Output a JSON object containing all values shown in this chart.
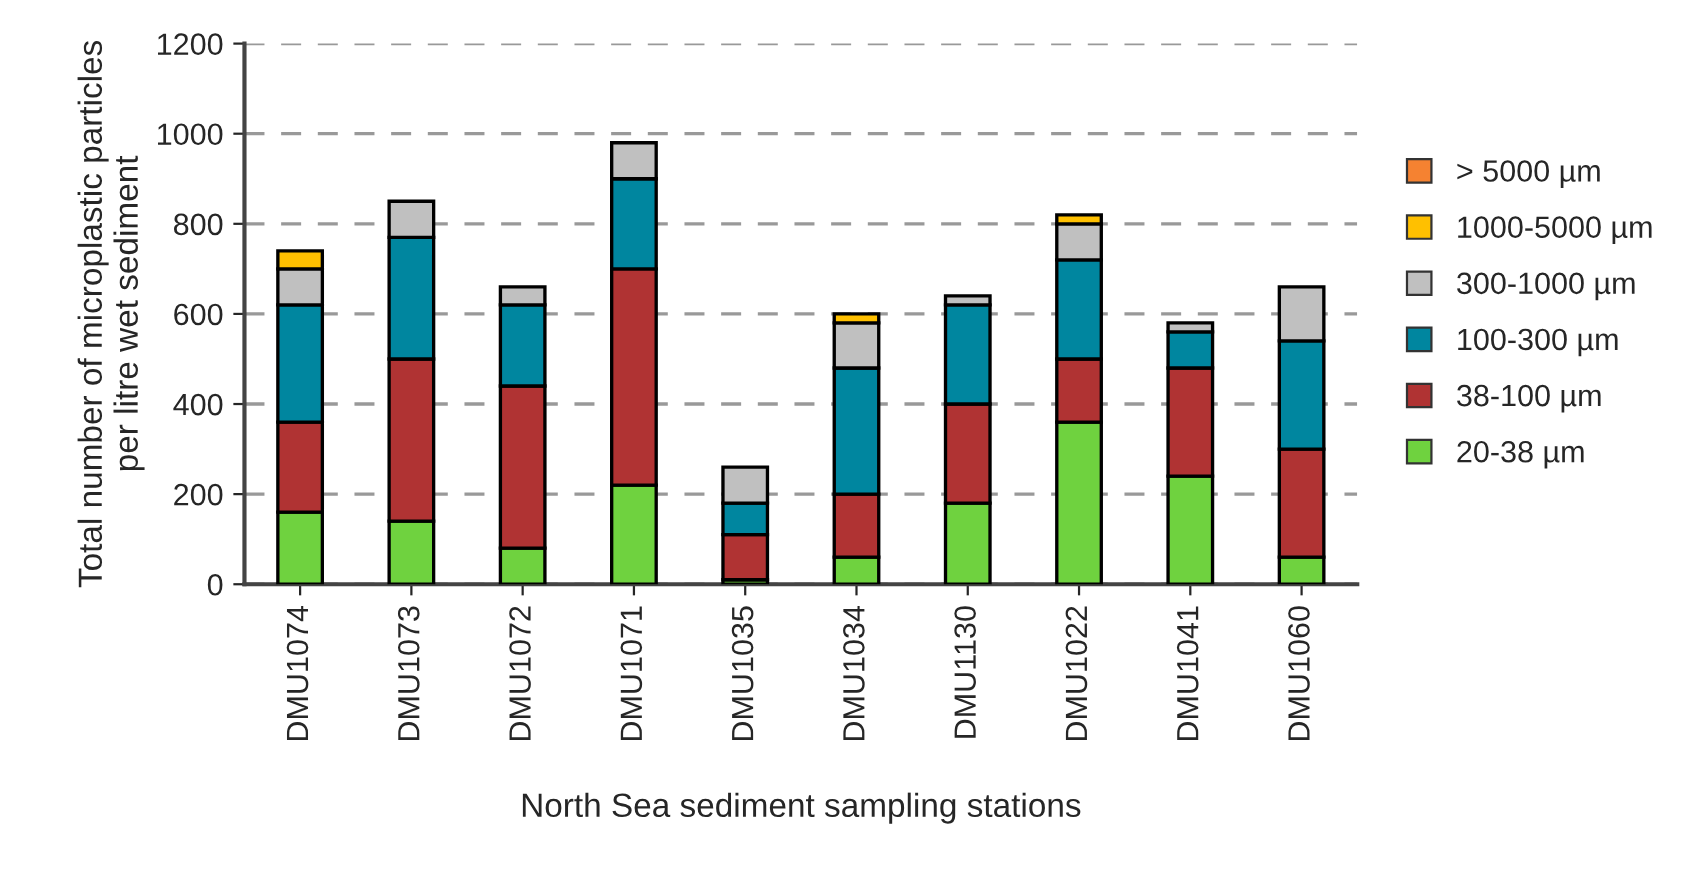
{
  "chart_data": {
    "type": "bar",
    "stacked": true,
    "xlabel": "North Sea sediment sampling stations",
    "ylabel": "Total number of microplastic particles\nper litre wet sediment",
    "categories": [
      "DMU1074",
      "DMU1073",
      "DMU1072",
      "DMU1071",
      "DMU1035",
      "DMU1034",
      "DMU1130",
      "DMU1022",
      "DMU1041",
      "DMU1060"
    ],
    "series": [
      {
        "name": "20-38 µm",
        "color": "#6fd23f",
        "values": [
          160,
          140,
          80,
          220,
          10,
          60,
          180,
          360,
          240,
          60
        ]
      },
      {
        "name": "38-100 µm",
        "color": "#b03333",
        "values": [
          200,
          360,
          360,
          480,
          100,
          140,
          220,
          140,
          240,
          240
        ]
      },
      {
        "name": "100-300 µm",
        "color": "#00869f",
        "values": [
          260,
          270,
          180,
          200,
          70,
          280,
          220,
          220,
          80,
          240
        ]
      },
      {
        "name": "300-1000 µm",
        "color": "#c0c0c0",
        "values": [
          80,
          80,
          40,
          80,
          80,
          100,
          20,
          80,
          20,
          120
        ]
      },
      {
        "name": "1000-5000 µm",
        "color": "#ffc000",
        "values": [
          40,
          null,
          null,
          null,
          null,
          20,
          null,
          20,
          null,
          null
        ]
      },
      {
        "name": "> 5000 µm",
        "color": "#f58231",
        "values": [
          null,
          null,
          null,
          null,
          null,
          null,
          null,
          null,
          null,
          null
        ]
      }
    ],
    "ylim": [
      0,
      1200
    ],
    "yticks": [
      0,
      200,
      400,
      600,
      800,
      1000,
      1200
    ],
    "grid": "y",
    "legend": "right",
    "line_style": "dashed"
  }
}
